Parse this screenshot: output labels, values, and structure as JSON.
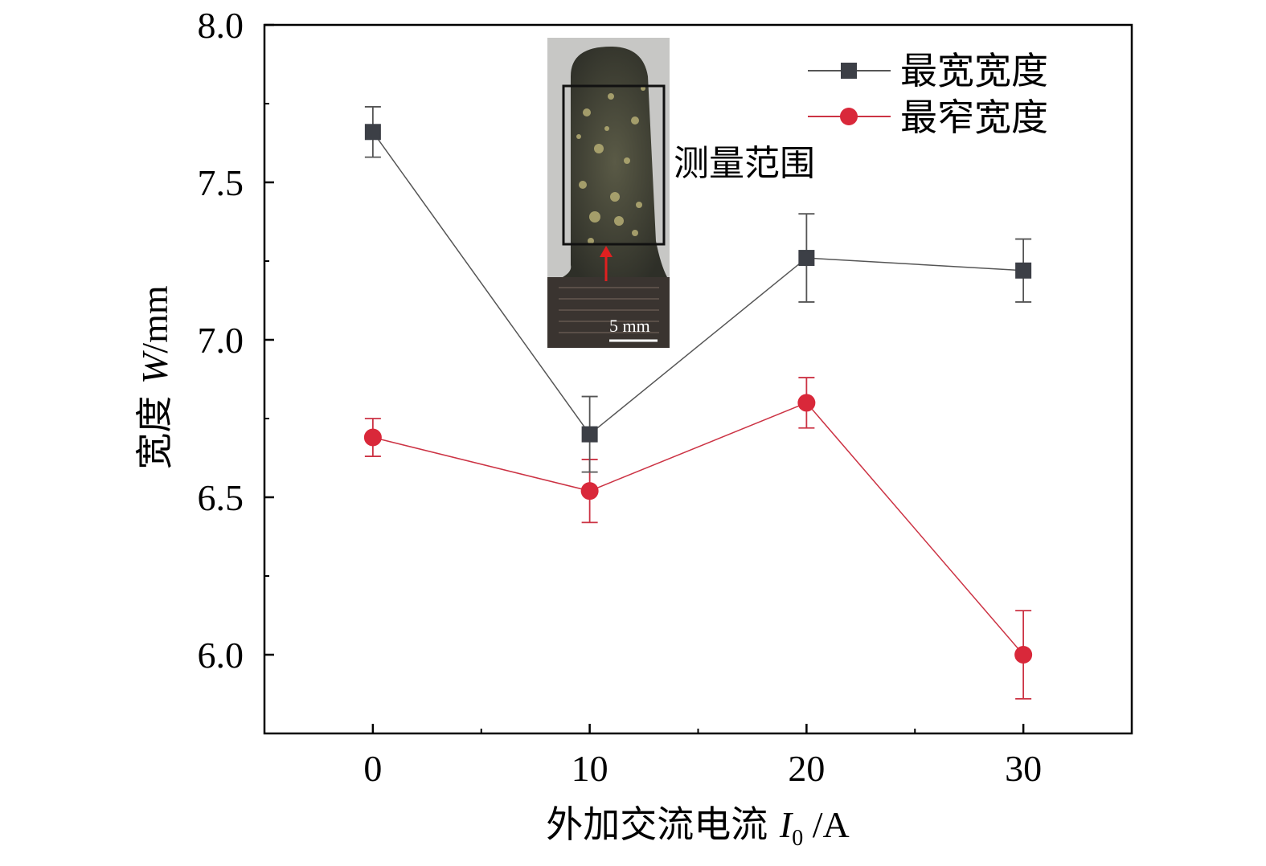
{
  "chart_data": {
    "type": "line",
    "x": [
      0,
      10,
      20,
      30
    ],
    "xlim": [
      -5,
      35
    ],
    "ylim": [
      5.75,
      8.0
    ],
    "x_ticks": [
      "0",
      "10",
      "20",
      "30"
    ],
    "y_ticks": [
      "6.0",
      "6.5",
      "7.0",
      "7.5",
      "8.0"
    ],
    "xlabel": {
      "prefix": "外加交流电流 ",
      "var": "I",
      "sub": "0",
      "suffix": " /A"
    },
    "ylabel": {
      "prefix": "宽度 ",
      "var": "W",
      "suffix": "/mm"
    },
    "legend_position": "top-right",
    "grid": false,
    "series": [
      {
        "name": "最宽宽度",
        "marker": "square",
        "color": "#3c3f46",
        "line_color": "#555555",
        "values": [
          7.66,
          6.7,
          7.26,
          7.22
        ],
        "errors": [
          0.08,
          0.12,
          0.14,
          0.1
        ]
      },
      {
        "name": "最窄宽度",
        "marker": "circle",
        "color": "#d9283a",
        "line_color": "#cc3344",
        "values": [
          6.69,
          6.52,
          6.8,
          6.0
        ],
        "errors": [
          0.06,
          0.1,
          0.08,
          0.14
        ]
      }
    ],
    "inset": {
      "annotation": "测量范围",
      "scale_bar": "5 mm"
    }
  }
}
